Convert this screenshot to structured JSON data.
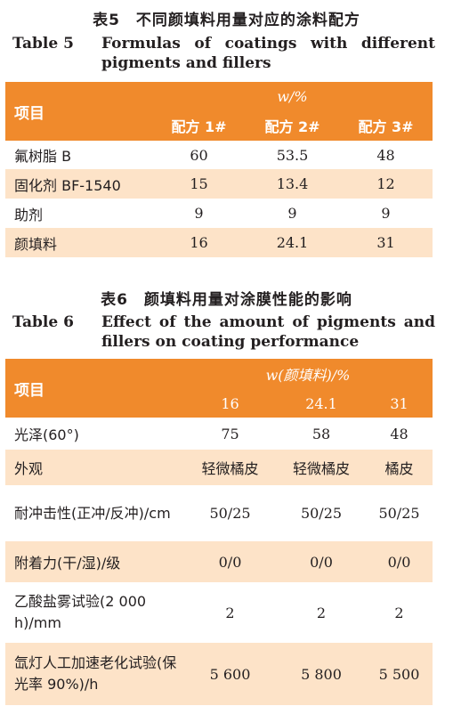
{
  "table5": {
    "cn_title": "表5　不同颜填料用量对应的涂料配方",
    "en_label": "Table 5",
    "en_title": "Formulas of coatings with different pigments and fillers",
    "header_item": "项目",
    "header_unit": "w/%",
    "columns": [
      "配方 1#",
      "配方 2#",
      "配方 3#"
    ],
    "rows": [
      {
        "label": "氟树脂 B",
        "values": [
          "60",
          "53.5",
          "48"
        ]
      },
      {
        "label": "固化剂 BF-1540",
        "values": [
          "15",
          "13.4",
          "12"
        ]
      },
      {
        "label": "助剂",
        "values": [
          "9",
          "9",
          "9"
        ]
      },
      {
        "label": "颜填料",
        "values": [
          "16",
          "24.1",
          "31"
        ]
      }
    ]
  },
  "table6": {
    "cn_title": "表6　颜填料用量对涂膜性能的影响",
    "en_label": "Table 6",
    "en_title": "Effect of the amount of pigments and fillers on coating performance",
    "header_item": "项目",
    "header_unit": "w(颜填料)/%",
    "columns": [
      "16",
      "24.1",
      "31"
    ],
    "rows": [
      {
        "label": "光泽(60°)",
        "values": [
          "75",
          "58",
          "48"
        ]
      },
      {
        "label": "外观",
        "values": [
          "轻微橘皮",
          "轻微橘皮",
          "橘皮"
        ]
      },
      {
        "label": "耐冲击性(正冲/反冲)/cm",
        "values": [
          "50/25",
          "50/25",
          "50/25"
        ]
      },
      {
        "label": "附着力(干/湿)/级",
        "values": [
          "0/0",
          "0/0",
          "0/0"
        ]
      },
      {
        "label": "乙酸盐雾试验(2 000 h)/mm",
        "values": [
          "2",
          "2",
          "2"
        ]
      },
      {
        "label": "氙灯人工加速老化试验(保光率 90%)/h",
        "values": [
          "5 600",
          "5 800",
          "5 500"
        ]
      }
    ]
  }
}
